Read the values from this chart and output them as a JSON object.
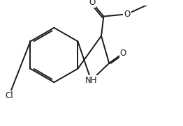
{
  "background": "#ffffff",
  "line_color": "#1a1a1a",
  "line_width": 1.4,
  "text_color": "#1a1a1a",
  "font_size": 8.5,
  "figsize": [
    2.62,
    1.81
  ],
  "dpi": 100,
  "xlim": [
    -2.8,
    3.8
  ],
  "ylim": [
    -2.6,
    1.8
  ]
}
